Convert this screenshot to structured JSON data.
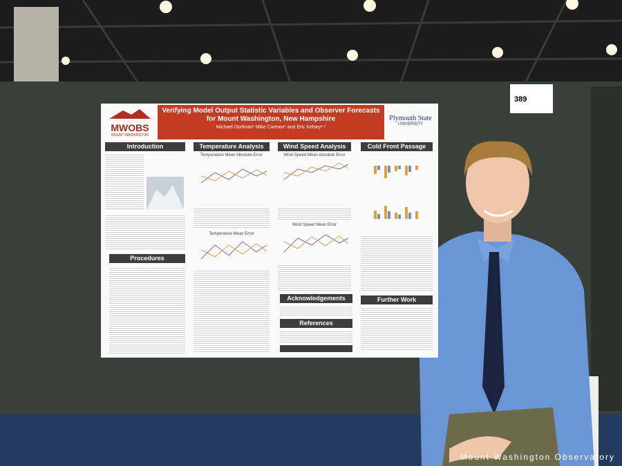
{
  "poster": {
    "logo": {
      "name": "MWOBS",
      "subtitle": "MOUNT WASHINGTON"
    },
    "title": "Verifying Model Output Statistic Variables and Observer Forecasts for Mount Washington, New Hampshire",
    "authors": "Michael Dorfman¹ Mike Carmon¹ and Eric Kelsey¹·²",
    "university": {
      "name": "Plymouth State",
      "subtitle": "UNIVERSITY"
    },
    "sections": [
      "Introduction",
      "Temperature Analysis",
      "Wind Speed Analysis",
      "Cold Front Passage",
      "Procedures",
      "Acknowledgements",
      "References",
      "Further Work"
    ],
    "figures": [
      "Temperature Mean Absolute Error",
      "Wind Speed Mean Absolute Error",
      "Temperature Mean Error",
      "Wind Speed Mean Error"
    ]
  },
  "tag": "389",
  "watermark": "Mount Washington Observatory"
}
